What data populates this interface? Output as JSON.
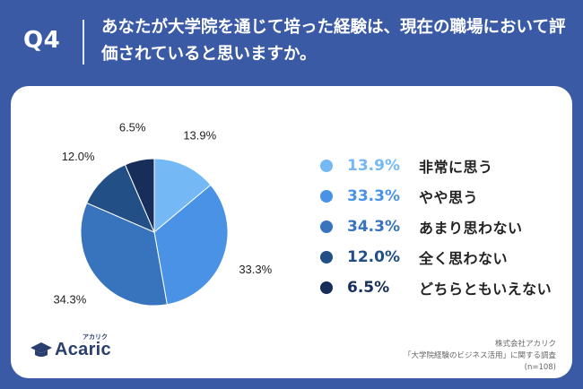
{
  "header": {
    "q_label": "Q4",
    "question": "あなたが大学院を通じて培った経験は、現在の職場において評価されていると思いますか。"
  },
  "chart_data": {
    "type": "pie",
    "unit": "%",
    "categories": [
      "非常に思う",
      "やや思う",
      "あまり思わない",
      "全く思わない",
      "どちらともいえない"
    ],
    "values": [
      13.9,
      33.3,
      34.3,
      12.0,
      6.5
    ],
    "value_labels": [
      "13.9%",
      "33.3%",
      "34.3%",
      "12.0%",
      "6.5%"
    ],
    "colors": [
      "#74b9f6",
      "#4a92e6",
      "#3874bd",
      "#224f86",
      "#162e59"
    ],
    "start": "top (12 o'clock), clockwise",
    "legend_placement": "right"
  },
  "footer": {
    "logo_text": "Acaric",
    "logo_kana": "アカリク",
    "source_line1": "株式会社アカリク",
    "source_line2": "「大学院経験のビジネス活用」に関する調査",
    "source_line3": "(n=108)"
  }
}
